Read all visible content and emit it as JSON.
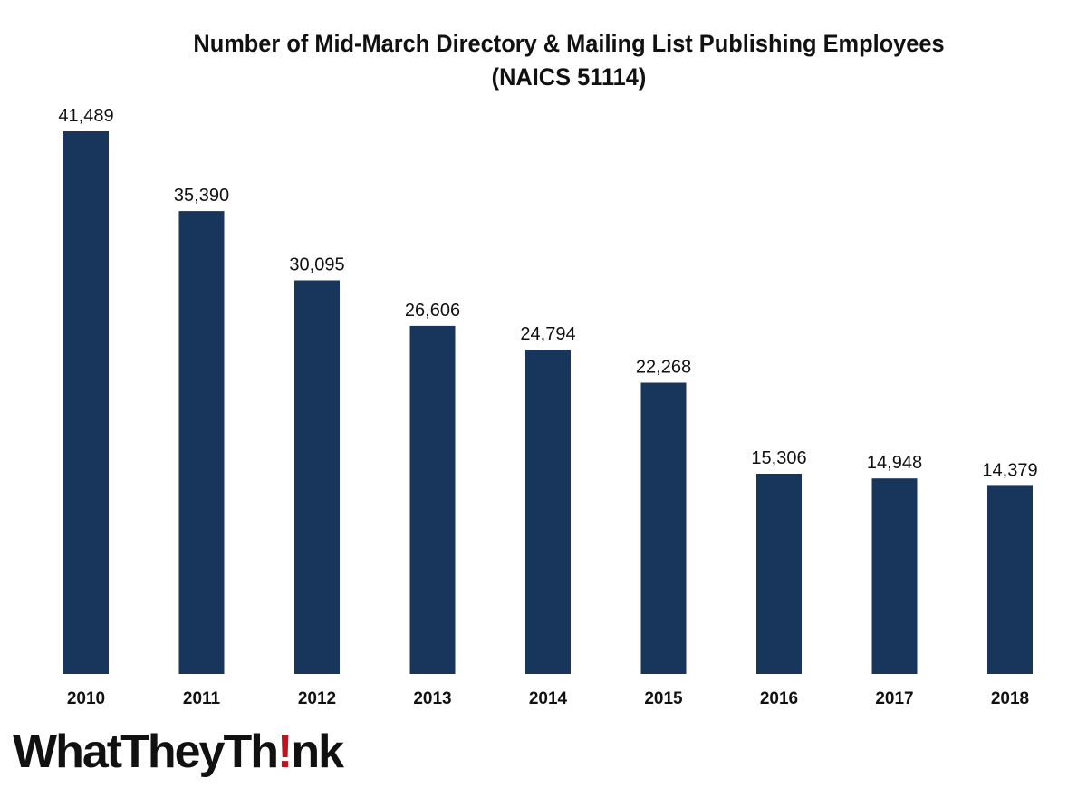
{
  "colors": {
    "bar": "#18365c",
    "text": "#111111",
    "logo_accent": "#c1121f"
  },
  "logo": {
    "part1": "WhatTheyTh",
    "mark": "!",
    "part2": "nk"
  },
  "chart_data": {
    "type": "bar",
    "title": [
      "Number of Mid-March Directory & Mailing List Publishing Employees",
      "(NAICS 51114)"
    ],
    "xlabel": "",
    "ylabel": "",
    "categories": [
      "2010",
      "2011",
      "2012",
      "2013",
      "2014",
      "2015",
      "2016",
      "2017",
      "2018"
    ],
    "values": [
      41489,
      35390,
      30095,
      26606,
      24794,
      22268,
      15306,
      14948,
      14379
    ],
    "value_labels": [
      "41,489",
      "35,390",
      "30,095",
      "26,606",
      "24,794",
      "22,268",
      "15,306",
      "14,948",
      "14,379"
    ],
    "ylim": [
      0,
      41489
    ],
    "grid": false,
    "legend": "none",
    "y_axis_visible": false
  }
}
